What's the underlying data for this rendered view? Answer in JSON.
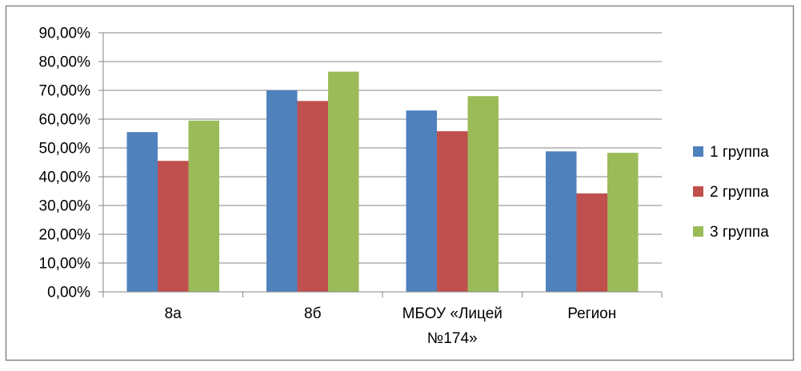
{
  "chart_data": {
    "type": "bar",
    "title": "",
    "xlabel": "",
    "ylabel": "",
    "ylim": [
      0,
      0.9
    ],
    "ytick_step": 0.1,
    "ytick_labels": [
      "0,00%",
      "10,00%",
      "20,00%",
      "30,00%",
      "40,00%",
      "50,00%",
      "60,00%",
      "70,00%",
      "80,00%",
      "90,00%"
    ],
    "grid": true,
    "legend_position": "right",
    "categories": [
      [
        "8а"
      ],
      [
        "8б"
      ],
      [
        "МБОУ «Лицей",
        "№174»"
      ],
      [
        "Регион"
      ]
    ],
    "series": [
      {
        "name": "1 группа",
        "color": "#4f81bd",
        "values": [
          0.555,
          0.7,
          0.63,
          0.488
        ]
      },
      {
        "name": "2 группа",
        "color": "#c0504d",
        "values": [
          0.455,
          0.663,
          0.558,
          0.342
        ]
      },
      {
        "name": "3 группа",
        "color": "#9bbb59",
        "values": [
          0.595,
          0.765,
          0.68,
          0.483
        ]
      }
    ]
  },
  "colors": {
    "border": "#868686",
    "gridline": "#868686",
    "axis": "#868686"
  }
}
